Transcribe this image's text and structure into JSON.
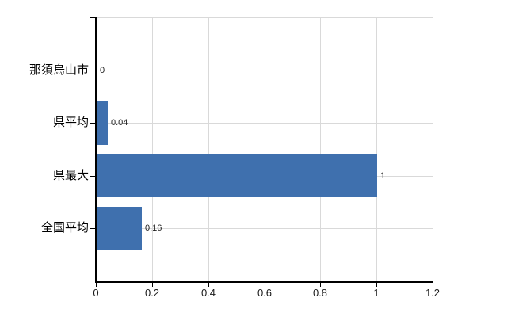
{
  "chart_data": {
    "type": "bar",
    "orientation": "horizontal",
    "title": "",
    "xlabel": "",
    "ylabel": "",
    "categories": [
      "那須烏山市",
      "県平均",
      "県最大",
      "全国平均"
    ],
    "values": [
      0,
      0.04,
      1,
      0.16
    ],
    "data_labels": [
      "0",
      "0.04",
      "1",
      "0.16"
    ],
    "xlim": [
      0,
      1.2
    ],
    "x_tick_values": [
      0,
      0.2,
      0.4,
      0.6,
      0.8,
      1,
      1.2
    ],
    "x_tick_labels": [
      "0",
      "0.2",
      "0.4",
      "0.6",
      "0.8",
      "1",
      "1.2"
    ],
    "grid": true,
    "legend": false,
    "colors": {
      "bar": "#3f70ae",
      "gridline": "#d9d9d9",
      "axis": "#000000",
      "category_label": "#000000",
      "tick_label": "#1a1a1a",
      "data_label": "#222222",
      "background": "#ffffff"
    }
  }
}
